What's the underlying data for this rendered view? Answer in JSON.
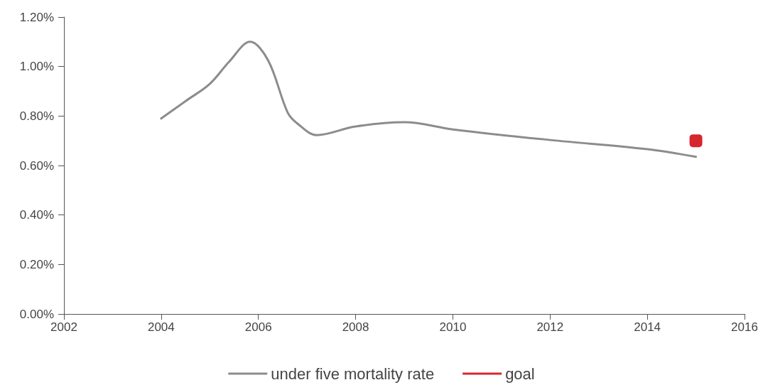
{
  "chart_data": {
    "type": "line",
    "xlim": [
      2002,
      2016
    ],
    "xticks": [
      2002,
      2004,
      2006,
      2008,
      2010,
      2012,
      2014,
      2016
    ],
    "ylim": [
      0,
      1.2
    ],
    "yticks": [
      {
        "value": 0,
        "label": "0.00%"
      },
      {
        "value": 0.2,
        "label": "0.20%"
      },
      {
        "value": 0.4,
        "label": "0.40%"
      },
      {
        "value": 0.6,
        "label": "0.60%"
      },
      {
        "value": 0.8,
        "label": "0.80%"
      },
      {
        "value": 1.0,
        "label": "1.00%"
      },
      {
        "value": 1.2,
        "label": "1.20%"
      }
    ],
    "grid": false,
    "legend": "bottom",
    "line_style": "solid",
    "series": [
      {
        "name": "under five mortality rate",
        "color": "#8c8c8c",
        "marker": "none",
        "x": [
          2004,
          2004.5,
          2005,
          2005.4,
          2005.83,
          2006.2,
          2006.6,
          2006.8,
          2007.2,
          2008,
          2009,
          2010,
          2012,
          2014,
          2015
        ],
        "values": [
          0.79,
          0.86,
          0.93,
          1.02,
          1.1,
          1.025,
          0.815,
          0.77,
          0.723,
          0.758,
          0.775,
          0.746,
          0.703,
          0.666,
          0.635
        ]
      },
      {
        "name": "goal",
        "color": "#d7262e",
        "marker": "square",
        "x": [
          2015
        ],
        "values": [
          0.7
        ]
      }
    ]
  }
}
